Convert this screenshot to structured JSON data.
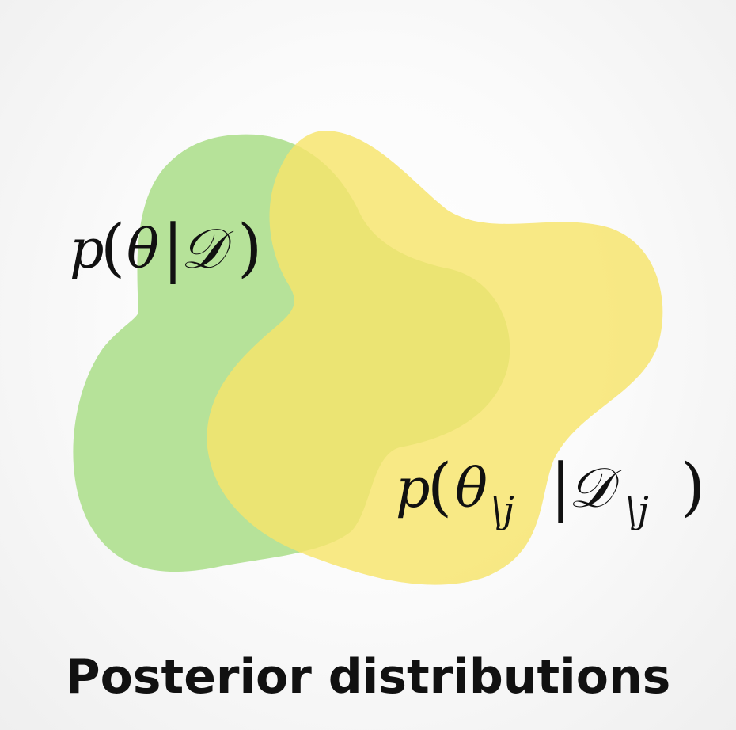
{
  "colors": {
    "green_blob": "#aedf8e",
    "yellow_blob": "#f6e46a",
    "text": "#111111"
  },
  "labels": {
    "prior": {
      "p": "p",
      "open": "(",
      "theta": "θ",
      "bar": "|",
      "D": "𝒟",
      "close": ")"
    },
    "loo": {
      "p": "p",
      "open": "(",
      "theta": "θ",
      "sub1": "\\j",
      "bar": "|",
      "D": "𝒟",
      "sub2": "\\j",
      "close": ")"
    }
  },
  "caption": "Posterior distributions"
}
